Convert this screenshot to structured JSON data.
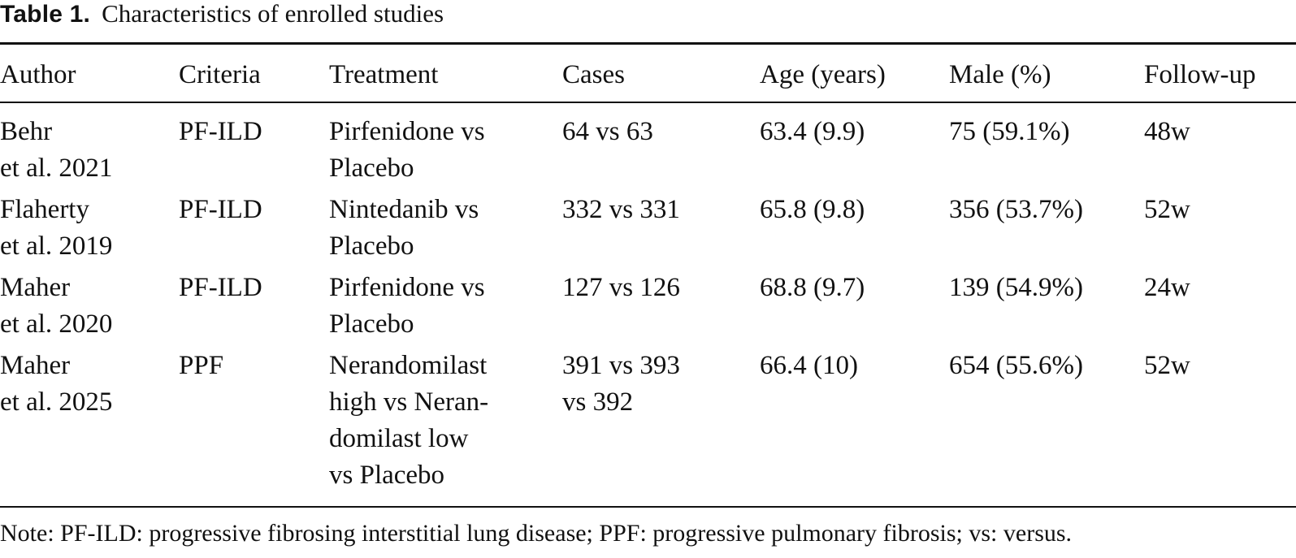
{
  "table": {
    "caption_label": "Table 1.",
    "caption_text": "Characteristics of enrolled studies",
    "headers": [
      "Author",
      "Criteria",
      "Treatment",
      "Cases",
      "Age (years)",
      "Male (%)",
      "Follow-up"
    ],
    "rows": [
      {
        "author": [
          "Behr",
          "et al. 2021"
        ],
        "criteria": [
          "PF-ILD"
        ],
        "treatment": [
          "Pirfenidone vs",
          "Placebo"
        ],
        "cases": [
          "64 vs 63"
        ],
        "age": [
          "63.4 (9.9)"
        ],
        "male": [
          "75 (59.1%)"
        ],
        "followup": [
          "48w"
        ]
      },
      {
        "author": [
          "Flaherty",
          "et al. 2019"
        ],
        "criteria": [
          "PF-ILD"
        ],
        "treatment": [
          "Nintedanib vs",
          "Placebo"
        ],
        "cases": [
          "332 vs 331"
        ],
        "age": [
          "65.8 (9.8)"
        ],
        "male": [
          "356 (53.7%)"
        ],
        "followup": [
          "52w"
        ]
      },
      {
        "author": [
          "Maher",
          "et al. 2020"
        ],
        "criteria": [
          "PF-ILD"
        ],
        "treatment": [
          "Pirfenidone vs",
          "Placebo"
        ],
        "cases": [
          "127 vs 126"
        ],
        "age": [
          "68.8 (9.7)"
        ],
        "male": [
          "139 (54.9%)"
        ],
        "followup": [
          "24w"
        ]
      },
      {
        "author": [
          "Maher",
          "et al. 2025"
        ],
        "criteria": [
          "PPF"
        ],
        "treatment": [
          "Nerandomilast",
          "high vs Neran-",
          "domilast low",
          "vs Placebo"
        ],
        "cases": [
          "391 vs 393",
          "vs 392"
        ],
        "age": [
          "66.4 (10)"
        ],
        "male": [
          "654 (55.6%)"
        ],
        "followup": [
          "52w"
        ]
      }
    ],
    "note": "Note: PF-ILD: progressive fibrosing interstitial lung disease; PPF: progressive pulmonary fibrosis; vs: versus."
  }
}
